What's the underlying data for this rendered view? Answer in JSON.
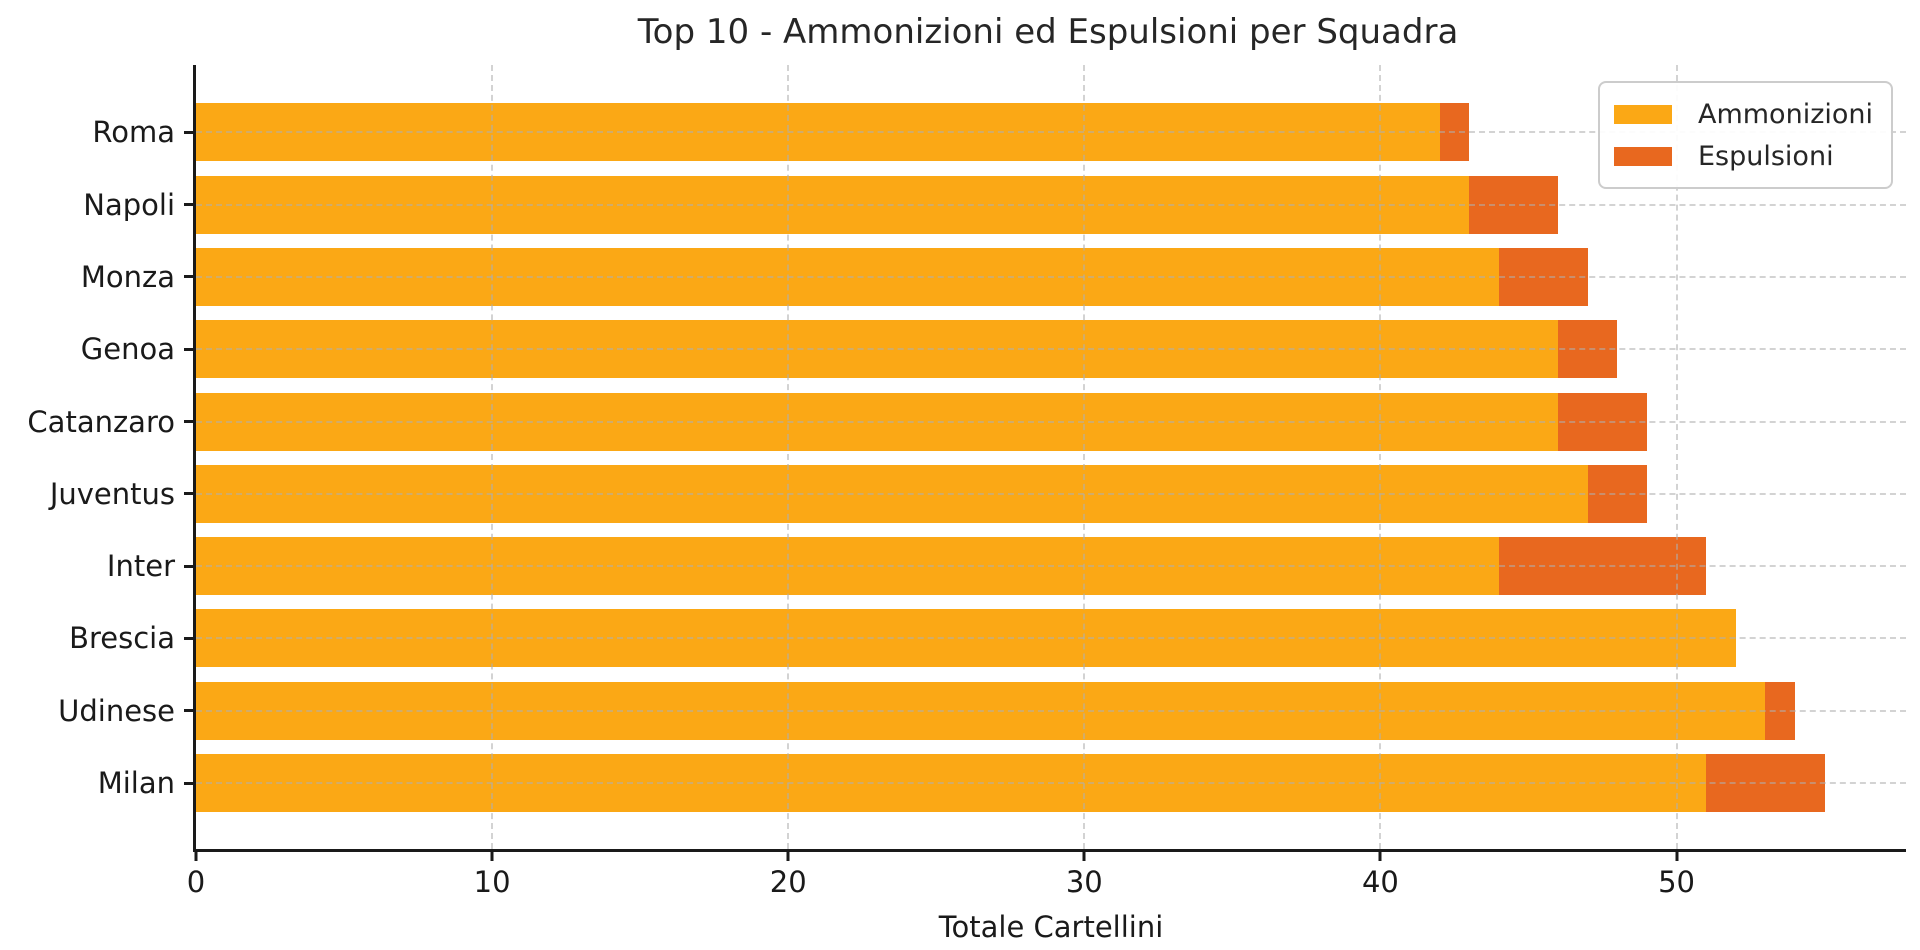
{
  "chart_data": {
    "type": "bar",
    "orientation": "horizontal",
    "stacked": true,
    "title": "Top 10 - Ammonizioni ed Espulsioni per Squadra",
    "xlabel": "Totale Cartellini",
    "categories": [
      "Roma",
      "Napoli",
      "Monza",
      "Genoa",
      "Catanzaro",
      "Juventus",
      "Inter",
      "Brescia",
      "Udinese",
      "Milan"
    ],
    "series": [
      {
        "name": "Ammonizioni",
        "color": "#FBA815",
        "values": [
          42,
          43,
          44,
          46,
          46,
          47,
          44,
          52,
          53,
          51
        ]
      },
      {
        "name": "Espulsioni",
        "color": "#E8681F",
        "values": [
          1,
          3,
          3,
          2,
          3,
          2,
          7,
          0,
          1,
          4
        ]
      }
    ],
    "totals": [
      43,
      46,
      47,
      48,
      49,
      49,
      51,
      52,
      54,
      55
    ],
    "x_ticks": [
      0,
      10,
      20,
      30,
      40,
      50
    ],
    "xlim": [
      0,
      57.75
    ],
    "grid": "dashed-both-axes-over-bars",
    "legend_position": "upper-right",
    "colors": {
      "ammonizioni": "#FBA815",
      "espulsioni": "#E8681F",
      "spine": "#1a1a1a",
      "grid": "#AFAFAF",
      "text": "#262626",
      "background": "#FFFFFF"
    }
  }
}
